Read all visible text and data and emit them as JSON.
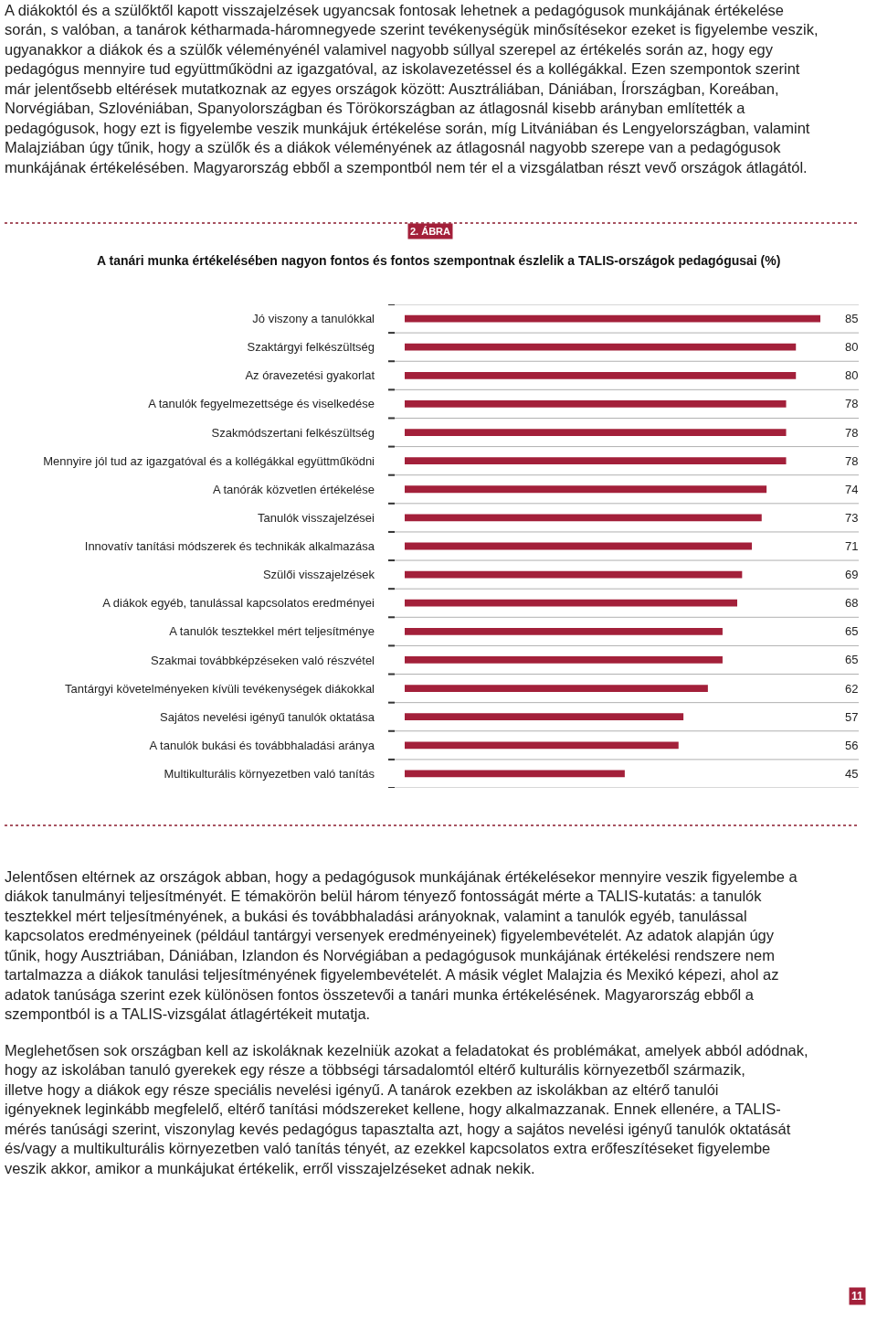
{
  "chart_data": {
    "type": "bar",
    "orientation": "horizontal",
    "title": "A tanári munka értékelésében nagyon fontos és fontos szempontnak észlelik a TALIS-országok pedagógusai (%)",
    "categories": [
      "Jó viszony a tanulókkal",
      "Szaktárgyi felkészültség",
      "Az óravezetési gyakorlat",
      "A tanulók fegyelmezettsége és viselkedése",
      "Szakmódszertani felkészültség",
      "Mennyire jól tud az igazgatóval és a kollégákkal együttműködni",
      "A tanórák közvetlen értékelése",
      "Tanulók visszajelzései",
      "Innovatív tanítási módszerek és technikák alkalmazása",
      "Szülői visszajelzések",
      "A diákok egyéb, tanulással kapcsolatos eredményei",
      "A tanulók tesztekkel mért teljesítménye",
      "Szakmai továbbképzéseken való részvétel",
      "Tantárgyi követelményeken kívüli tevékenységek diákokkal",
      "Sajátos nevelési igényű tanulók oktatása",
      "A tanulók bukási és továbbhaladási aránya",
      "Multikulturális környezetben való tanítás"
    ],
    "values": [
      85,
      80,
      80,
      78,
      78,
      78,
      74,
      73,
      71,
      69,
      68,
      65,
      65,
      62,
      57,
      56,
      45
    ],
    "color": "#a3203a",
    "data_labels": true,
    "tick_labels": "y",
    "legend": false,
    "annotations": [
      "A diákoktól és a szülőktől kapott visszajelzések ugyancsak fontosak lehetnek a pedagógusok munkájának értékelése során, s valóban, a tanárok kétharmada-háromnegyede szerint tevékenységük minősítésekor ezeket is figyelembe veszik, ugyanakkor a diákok és a szülők véleményénél valamivel nagyobb súllyal szerepel az értékelés során az, hogy egy pedagógus mennyire tud együttműködni az igazgatóval, az iskolavezetéssel és a kollégákkal. Ezen szempontok szerint már jelentősebb eltérések mutatkoznak az egyes országok között: Ausztráliában, Dániában, Írországban, Koreában, Norvégiában, Szlovéniában, Spanyolországban és Törökországban az átlagosnál kisebb arányban említették a pedagógusok, hogy ezt is figyelembe veszik munkájuk értékelése során, míg Litvániában és Lengyelországban, valamint Malajziában úgy tűnik, hogy a szülők és a diákok véleményének az átlagosnál nagyobb szerepe van a pedagógusok munkájának értékelésében. Magyarország ebből a szempontból nem tér el a vizsgálatban részt vevő országok átlagától.",
      "2. ÁBRA",
      "Jelentősen eltérnek az országok abban, hogy a pedagógusok munkájának értékelésekor mennyire veszik figyelembe a diákok tanulmányi teljesítményét. E témakörön belül három tényező fontosságát mérte a TALIS-kutatás: a tanulók tesztekkel mért teljesítményének, a bukási és továbbhaladási arányoknak, valamint a tanulók egyéb, tanulással kapcsolatos eredményeinek (például tantárgyi versenyek eredményeinek) figyelembevételét. Az adatok alapján úgy tűnik, hogy Ausztriában, Dániában, Izlandon és Norvégiában a pedagógusok munkájának értékelési rendszere nem tartalmazza a diákok tanulási teljesítményének figyelembevételét. A másik véglet Malajzia és Mexikó képezi, ahol az adatok tanúsága szerint ezek különösen fontos összetevői a tanári munka értékelésének. Magyarország ebből a szempontból is a TALIS-vizsgálat átlagértékeit mutatja.",
      "Meglehetősen sok országban kell az iskoláknak kezelniük azokat a feladatokat és problémákat, amelyek abból adódnak, hogy az iskolában tanuló gyerekek egy része a többségi társadalomtól eltérő kulturális környezetből származik, illetve hogy a diákok egy része speciális nevelési igényű. A tanárok ezekben az iskolákban az eltérő tanulói igényeknek leginkább megfelelő, eltérő tanítási módszereket kellene, hogy alkalmazzanak. Ennek ellenére, a TALIS-mérés tanúsági szerint, viszonylag kevés pedagógus tapasztalta azt, hogy a sajátos nevelési igényű tanulók oktatását és/vagy a multikulturális környezetben való tanítás tényét, az ezekkel kapcsolatos extra erőfeszítéseket figyelembe veszik akkor, amikor a munkájukat értékelik, erről visszajelzéseket adnak nekik.",
      "11"
    ]
  }
}
